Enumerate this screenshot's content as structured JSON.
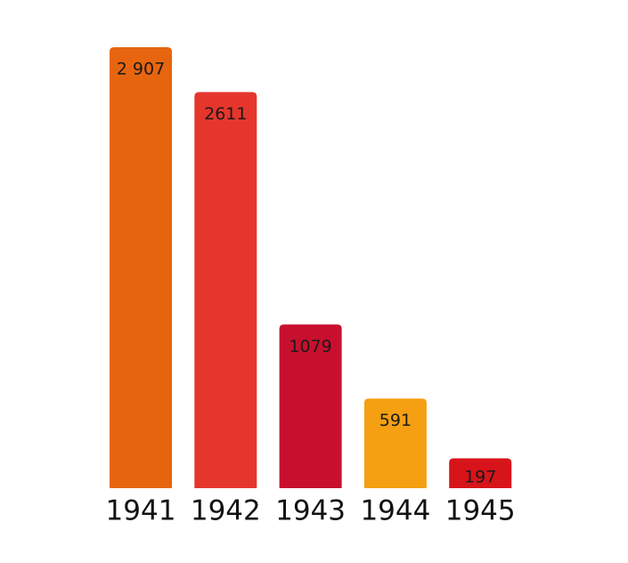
{
  "chart_data": {
    "type": "bar",
    "categories": [
      "1941",
      "1942",
      "1943",
      "1944",
      "1945"
    ],
    "values": [
      2907,
      2611,
      1079,
      591,
      197
    ],
    "value_labels": [
      "2 907",
      "2611",
      "1079",
      "591",
      "197"
    ],
    "colors": [
      "#e8650f",
      "#e5362c",
      "#c8102e",
      "#f4a012",
      "#d7141a"
    ]
  }
}
